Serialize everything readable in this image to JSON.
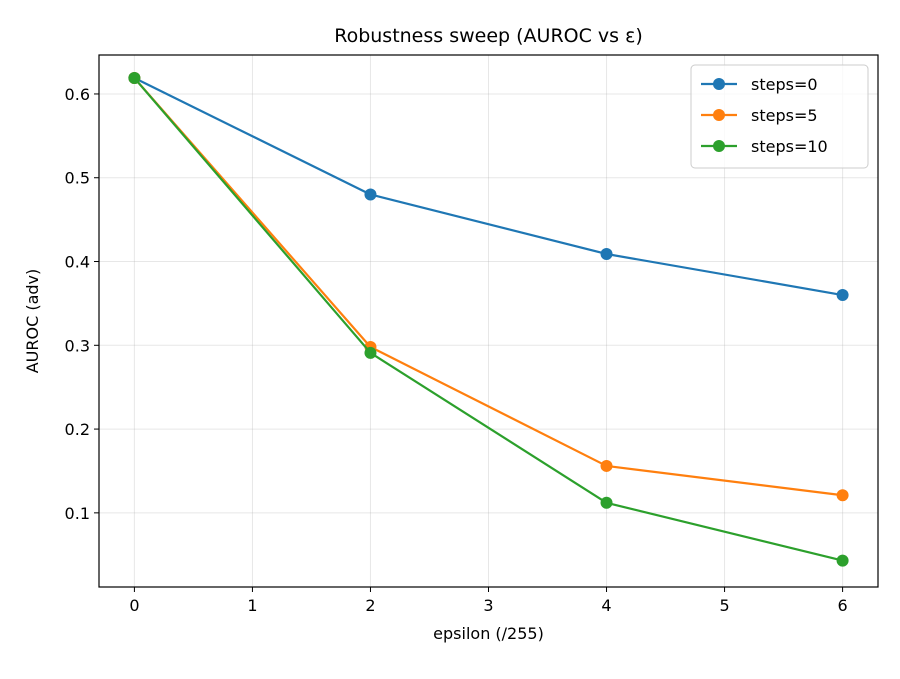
{
  "chart_data": {
    "type": "line",
    "title": "Robustness sweep (AUROC vs ε)",
    "xlabel": "epsilon (/255)",
    "ylabel": "AUROC (adv)",
    "xlim": [
      -0.3,
      6.3
    ],
    "ylim": [
      0.0115,
      0.6465
    ],
    "xticks": [
      0,
      1,
      2,
      3,
      4,
      5,
      6
    ],
    "yticks": [
      0.1,
      0.2,
      0.3,
      0.4,
      0.5,
      0.6
    ],
    "xtick_labels": [
      "0",
      "1",
      "2",
      "3",
      "4",
      "5",
      "6"
    ],
    "ytick_labels": [
      "0.1",
      "0.2",
      "0.3",
      "0.4",
      "0.5",
      "0.6"
    ],
    "grid": true,
    "legend_position": "top-right",
    "x": [
      0,
      2,
      4,
      6
    ],
    "series": [
      {
        "name": "steps=0",
        "color": "#1f77b4",
        "values": [
          0.619,
          0.48,
          0.409,
          0.36
        ]
      },
      {
        "name": "steps=5",
        "color": "#ff7f0e",
        "values": [
          0.619,
          0.298,
          0.156,
          0.121
        ]
      },
      {
        "name": "steps=10",
        "color": "#2ca02c",
        "values": [
          0.619,
          0.291,
          0.112,
          0.043
        ]
      }
    ]
  }
}
